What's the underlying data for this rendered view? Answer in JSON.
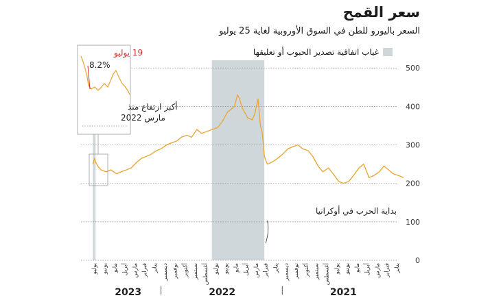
{
  "chart_data": {
    "type": "line",
    "title": "سعر القمح",
    "subtitle": "السعر باليورو للطن في السوق الأوروبية لغاية 25 يوليو",
    "legend": {
      "label": "غياب اتفاقية تصدير الحبوب أو تعليقها",
      "color": "#d0d7da",
      "placement": "top"
    },
    "series_color": "#e8a93a",
    "y_ticks": [
      0,
      100,
      200,
      300,
      400,
      500
    ],
    "ylim": [
      0,
      520
    ],
    "x_axis_direction": "right-to-left",
    "x_tick_labels": [
      "يناير",
      "فبراير",
      "مارس",
      "أبريل",
      "مايو",
      "يونيو",
      "يوليو",
      "أغسطس",
      "سبتمبر",
      "أكتوبر",
      "نوفمبر",
      "ديسمبر",
      "يناير",
      "فبراير",
      "مارس",
      "أبريل",
      "مايو",
      "يونيو",
      "يوليو",
      "أغسطس",
      "سبتمبر",
      "أكتوبر",
      "نوفمبر",
      "ديسمبر",
      "يناير",
      "فبراير",
      "مارس",
      "أبريل",
      "مايو",
      "يونيو",
      "يوليو"
    ],
    "years": [
      "2021",
      "2022",
      "2023"
    ],
    "shaded_periods": [
      {
        "start": "2022-02-24",
        "end": "2022-08-01"
      },
      {
        "start": "2023-07-17",
        "end": "2023-07-25"
      }
    ],
    "series": [
      {
        "x": [
          "2021-01-01",
          "2021-01-15",
          "2021-02-01",
          "2021-02-15",
          "2021-03-01",
          "2021-03-15",
          "2021-04-01",
          "2021-04-15",
          "2021-05-01",
          "2021-05-15",
          "2021-06-01",
          "2021-06-15",
          "2021-07-01",
          "2021-07-15",
          "2021-08-01",
          "2021-08-15",
          "2021-09-01",
          "2021-09-15",
          "2021-10-01",
          "2021-10-15",
          "2021-11-01",
          "2021-11-15",
          "2021-12-01",
          "2021-12-15",
          "2022-01-01",
          "2022-01-15",
          "2022-02-01",
          "2022-02-15",
          "2022-02-24",
          "2022-03-02",
          "2022-03-08",
          "2022-03-15",
          "2022-03-25",
          "2022-04-01",
          "2022-04-15",
          "2022-05-01",
          "2022-05-10",
          "2022-05-16",
          "2022-05-25",
          "2022-06-01",
          "2022-06-15",
          "2022-07-01",
          "2022-07-15",
          "2022-08-01",
          "2022-08-15",
          "2022-09-01",
          "2022-09-15",
          "2022-10-01",
          "2022-10-15",
          "2022-11-01",
          "2022-11-15",
          "2022-12-01",
          "2022-12-15",
          "2023-01-01",
          "2023-01-15",
          "2023-02-01",
          "2023-02-15",
          "2023-03-01",
          "2023-03-15",
          "2023-04-01",
          "2023-04-15",
          "2023-05-01",
          "2023-05-15",
          "2023-06-01",
          "2023-06-15",
          "2023-07-01",
          "2023-07-10",
          "2023-07-17",
          "2023-07-20",
          "2023-07-25"
        ],
        "y": [
          215,
          220,
          225,
          235,
          245,
          230,
          220,
          215,
          250,
          240,
          220,
          205,
          200,
          205,
          225,
          240,
          230,
          245,
          270,
          285,
          290,
          300,
          295,
          290,
          275,
          265,
          255,
          250,
          270,
          330,
          350,
          420,
          380,
          365,
          370,
          395,
          420,
          430,
          400,
          395,
          385,
          360,
          345,
          340,
          335,
          330,
          340,
          320,
          325,
          320,
          310,
          305,
          300,
          290,
          285,
          275,
          270,
          265,
          255,
          240,
          235,
          230,
          225,
          235,
          230,
          235,
          245,
          255,
          265,
          250
        ]
      }
    ],
    "annotations": {
      "war_start": "بداية الحرب في أوكرانيا",
      "inset_date": "19 يوليو",
      "inset_pct": "8.2%",
      "inset_note_line1": "أكبر ارتفاع منذ",
      "inset_note_line2": "مارس 2022"
    }
  }
}
